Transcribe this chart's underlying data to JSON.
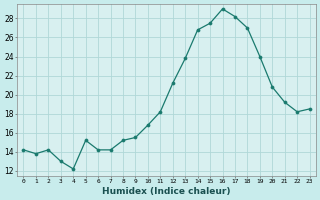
{
  "x": [
    0,
    1,
    2,
    3,
    4,
    5,
    6,
    7,
    8,
    9,
    10,
    11,
    12,
    13,
    14,
    15,
    16,
    17,
    18,
    19,
    20,
    21,
    22,
    23
  ],
  "y": [
    14.2,
    13.8,
    14.2,
    13.0,
    12.2,
    15.2,
    14.2,
    14.2,
    15.2,
    15.5,
    16.8,
    18.2,
    21.2,
    23.8,
    26.8,
    27.5,
    29.0,
    28.2,
    27.0,
    24.0,
    20.8,
    19.2,
    18.2,
    18.5
  ],
  "xlabel": "Humidex (Indice chaleur)",
  "ylim": [
    11.5,
    29.5
  ],
  "yticks": [
    12,
    14,
    16,
    18,
    20,
    22,
    24,
    26,
    28
  ],
  "xticks": [
    0,
    1,
    2,
    3,
    4,
    5,
    6,
    7,
    8,
    9,
    10,
    11,
    12,
    13,
    14,
    15,
    16,
    17,
    18,
    19,
    20,
    21,
    22,
    23
  ],
  "line_color": "#1a7a6e",
  "marker_color": "#1a7a6e",
  "bg_color": "#c8ecec",
  "grid_color": "#b0d8d8",
  "axes_bg": "#d8f0f0"
}
